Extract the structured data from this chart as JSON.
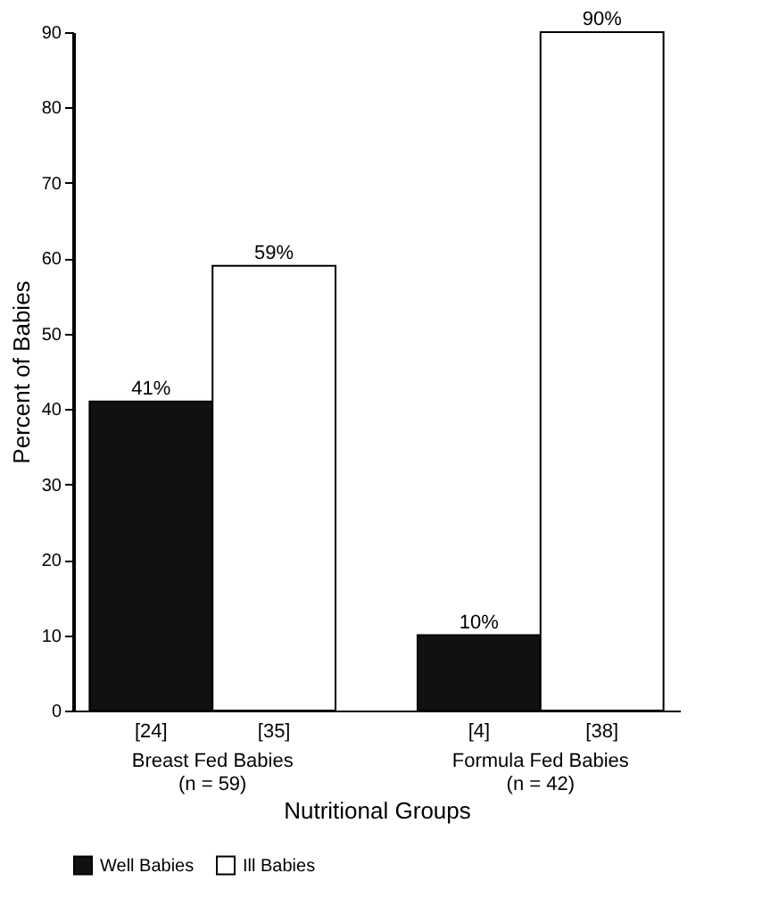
{
  "chart_data": {
    "type": "bar",
    "xlabel": "Nutritional Groups",
    "ylabel": "Percent of Babies",
    "categories": [
      "Breast Fed Babies\n(n = 59)",
      "Formula Fed Babies\n(n = 42)"
    ],
    "series": [
      {
        "name": "Well Babies",
        "color": "#111111",
        "values": [
          41,
          10
        ],
        "value_labels": [
          "41%",
          "10%"
        ]
      },
      {
        "name": "Ill Babies",
        "color": "#ffffff",
        "values": [
          59,
          90
        ],
        "value_labels": [
          "59%",
          "90%"
        ]
      }
    ],
    "annotations": [
      "[24]",
      "[4]",
      "[35]",
      "[38]"
    ],
    "ylim": [
      0,
      90
    ],
    "yticks": [
      0,
      10,
      20,
      30,
      40,
      50,
      60,
      70,
      80,
      90
    ],
    "grid": false,
    "legend": "bottom"
  }
}
